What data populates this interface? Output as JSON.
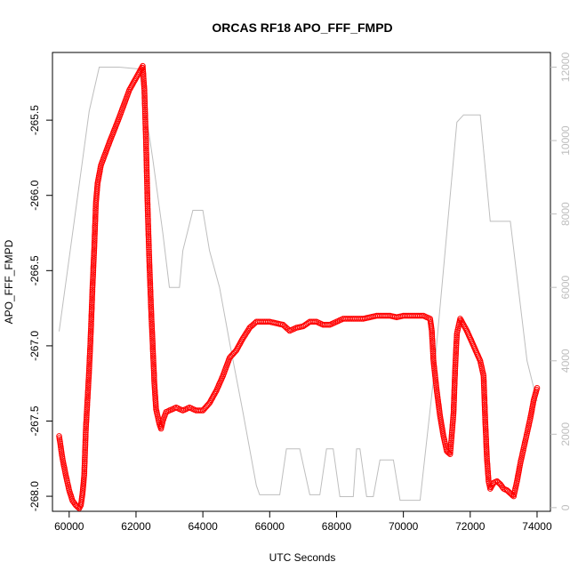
{
  "chart_data": {
    "type": "scatter",
    "title": "ORCAS RF18 APO_FFF_FMPD",
    "xlabel": "UTC Seconds",
    "ylabel": "APO_FFF_FMPD",
    "xlim": [
      59500,
      74400
    ],
    "ylim": [
      -268.1,
      -265.05
    ],
    "x_ticks": [
      60000,
      62000,
      64000,
      66000,
      68000,
      70000,
      72000,
      74000
    ],
    "x_tick_labels": [
      "60000",
      "62000",
      "64000",
      "66000",
      "68000",
      "70000",
      "72000",
      "74000"
    ],
    "y_ticks": [
      -268.0,
      -267.5,
      -267.0,
      -266.5,
      -266.0,
      -265.5
    ],
    "y_tick_labels": [
      "-268.0",
      "-267.5",
      "-267.0",
      "-266.5",
      "-266.0",
      "-265.5"
    ],
    "y2lim": [
      -100,
      12400
    ],
    "y2_ticks": [
      0,
      2000,
      4000,
      6000,
      8000,
      10000,
      12000
    ],
    "y2_tick_labels": [
      "0",
      "2000",
      "4000",
      "6000",
      "8000",
      "10000",
      "12000"
    ],
    "colors": {
      "primary": "#ff0000",
      "secondary": "#bebebe",
      "axis": "#000000"
    },
    "series": [
      {
        "axis": "left",
        "style": "open-circles",
        "points": [
          [
            59700,
            -267.6
          ],
          [
            59800,
            -267.75
          ],
          [
            59900,
            -267.86
          ],
          [
            60000,
            -267.96
          ],
          [
            60100,
            -268.03
          ],
          [
            60200,
            -268.06
          ],
          [
            60300,
            -268.08
          ],
          [
            60350,
            -268.06
          ],
          [
            60400,
            -267.98
          ],
          [
            60450,
            -267.86
          ],
          [
            60500,
            -267.55
          ],
          [
            60550,
            -267.35
          ],
          [
            60600,
            -267.15
          ],
          [
            60650,
            -266.9
          ],
          [
            60700,
            -266.6
          ],
          [
            60750,
            -266.35
          ],
          [
            60800,
            -266.05
          ],
          [
            60850,
            -265.92
          ],
          [
            60950,
            -265.8
          ],
          [
            61200,
            -265.65
          ],
          [
            61500,
            -265.48
          ],
          [
            61800,
            -265.3
          ],
          [
            62000,
            -265.22
          ],
          [
            62200,
            -265.14
          ],
          [
            62250,
            -265.3
          ],
          [
            62300,
            -265.65
          ],
          [
            62350,
            -266.1
          ],
          [
            62400,
            -266.45
          ],
          [
            62450,
            -266.75
          ],
          [
            62500,
            -267.0
          ],
          [
            62550,
            -267.25
          ],
          [
            62600,
            -267.42
          ],
          [
            62700,
            -267.52
          ],
          [
            62750,
            -267.55
          ],
          [
            62800,
            -267.5
          ],
          [
            62900,
            -267.44
          ],
          [
            63200,
            -267.41
          ],
          [
            63400,
            -267.43
          ],
          [
            63600,
            -267.41
          ],
          [
            63800,
            -267.43
          ],
          [
            64000,
            -267.43
          ],
          [
            64200,
            -267.38
          ],
          [
            64400,
            -267.3
          ],
          [
            64600,
            -267.2
          ],
          [
            64800,
            -267.08
          ],
          [
            65000,
            -267.03
          ],
          [
            65200,
            -266.95
          ],
          [
            65400,
            -266.88
          ],
          [
            65600,
            -266.84
          ],
          [
            65800,
            -266.84
          ],
          [
            66000,
            -266.84
          ],
          [
            66200,
            -266.85
          ],
          [
            66400,
            -266.86
          ],
          [
            66600,
            -266.9
          ],
          [
            66800,
            -266.88
          ],
          [
            67000,
            -266.87
          ],
          [
            67200,
            -266.84
          ],
          [
            67400,
            -266.84
          ],
          [
            67600,
            -266.86
          ],
          [
            67800,
            -266.86
          ],
          [
            68000,
            -266.84
          ],
          [
            68200,
            -266.82
          ],
          [
            68400,
            -266.82
          ],
          [
            68600,
            -266.82
          ],
          [
            68800,
            -266.82
          ],
          [
            69000,
            -266.81
          ],
          [
            69200,
            -266.8
          ],
          [
            69400,
            -266.8
          ],
          [
            69600,
            -266.8
          ],
          [
            69800,
            -266.81
          ],
          [
            70000,
            -266.8
          ],
          [
            70200,
            -266.8
          ],
          [
            70400,
            -266.8
          ],
          [
            70600,
            -266.8
          ],
          [
            70800,
            -266.82
          ],
          [
            70850,
            -266.9
          ],
          [
            70900,
            -267.1
          ],
          [
            71000,
            -267.3
          ],
          [
            71100,
            -267.47
          ],
          [
            71200,
            -267.6
          ],
          [
            71300,
            -267.7
          ],
          [
            71400,
            -267.72
          ],
          [
            71500,
            -267.45
          ],
          [
            71550,
            -267.15
          ],
          [
            71600,
            -266.92
          ],
          [
            71700,
            -266.82
          ],
          [
            71800,
            -266.86
          ],
          [
            71900,
            -266.9
          ],
          [
            72000,
            -266.95
          ],
          [
            72100,
            -267.0
          ],
          [
            72200,
            -267.05
          ],
          [
            72300,
            -267.1
          ],
          [
            72400,
            -267.2
          ],
          [
            72450,
            -267.5
          ],
          [
            72500,
            -267.75
          ],
          [
            72550,
            -267.9
          ],
          [
            72600,
            -267.95
          ],
          [
            72700,
            -267.91
          ],
          [
            72800,
            -267.9
          ],
          [
            72900,
            -267.92
          ],
          [
            73000,
            -267.95
          ],
          [
            73100,
            -267.96
          ],
          [
            73200,
            -267.98
          ],
          [
            73300,
            -268.0
          ],
          [
            73400,
            -267.9
          ],
          [
            73500,
            -267.78
          ],
          [
            73600,
            -267.68
          ],
          [
            73700,
            -267.58
          ],
          [
            73800,
            -267.48
          ],
          [
            73900,
            -267.36
          ],
          [
            74000,
            -267.28
          ]
        ]
      },
      {
        "axis": "right",
        "style": "line",
        "points": [
          [
            59700,
            4800
          ],
          [
            60000,
            6800
          ],
          [
            60300,
            8800
          ],
          [
            60600,
            10800
          ],
          [
            60900,
            12000
          ],
          [
            61500,
            12000
          ],
          [
            62100,
            11950
          ],
          [
            62500,
            9500
          ],
          [
            62800,
            7500
          ],
          [
            63000,
            6000
          ],
          [
            63300,
            6000
          ],
          [
            63400,
            7000
          ],
          [
            63700,
            8100
          ],
          [
            64000,
            8100
          ],
          [
            64200,
            7000
          ],
          [
            64500,
            6000
          ],
          [
            64800,
            4500
          ],
          [
            65200,
            2600
          ],
          [
            65600,
            600
          ],
          [
            65700,
            350
          ],
          [
            66300,
            350
          ],
          [
            66500,
            1600
          ],
          [
            66900,
            1600
          ],
          [
            67200,
            350
          ],
          [
            67500,
            350
          ],
          [
            67700,
            1600
          ],
          [
            67900,
            1600
          ],
          [
            68100,
            300
          ],
          [
            68500,
            300
          ],
          [
            68600,
            1600
          ],
          [
            68700,
            1600
          ],
          [
            68900,
            300
          ],
          [
            69100,
            300
          ],
          [
            69300,
            1300
          ],
          [
            69700,
            1300
          ],
          [
            69900,
            200
          ],
          [
            70500,
            200
          ],
          [
            70900,
            3500
          ],
          [
            71300,
            7500
          ],
          [
            71600,
            10500
          ],
          [
            71800,
            10700
          ],
          [
            72300,
            10700
          ],
          [
            72600,
            7800
          ],
          [
            73200,
            7800
          ],
          [
            73700,
            4000
          ],
          [
            74000,
            2900
          ]
        ]
      }
    ]
  }
}
